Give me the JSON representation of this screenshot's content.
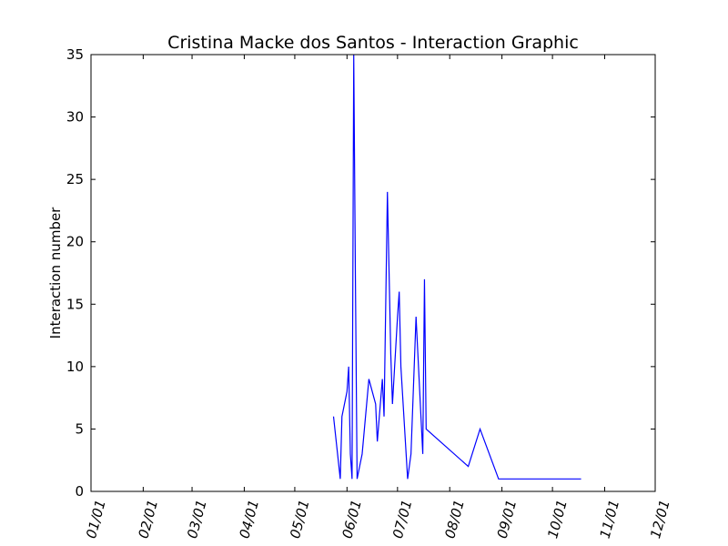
{
  "chart_data": {
    "type": "line",
    "title": "Cristina Macke dos Santos - Interaction Graphic",
    "xlabel": "",
    "ylabel": "Interaction number",
    "x_scale": "date",
    "xlim": [
      "01/01",
      "12/01"
    ],
    "ylim": [
      0,
      35
    ],
    "xticks": [
      "01/01",
      "02/01",
      "03/01",
      "04/01",
      "05/01",
      "06/01",
      "07/01",
      "08/01",
      "09/01",
      "10/01",
      "11/01",
      "12/01"
    ],
    "yticks": [
      0,
      5,
      10,
      15,
      20,
      25,
      30,
      35
    ],
    "grid": false,
    "series": [
      {
        "color": "#0000ff",
        "points": [
          {
            "x": "05/24",
            "y": 6
          },
          {
            "x": "05/28",
            "y": 1
          },
          {
            "x": "05/29",
            "y": 6
          },
          {
            "x": "06/01",
            "y": 8
          },
          {
            "x": "06/02",
            "y": 10
          },
          {
            "x": "06/03",
            "y": 3
          },
          {
            "x": "06/04",
            "y": 1
          },
          {
            "x": "06/05",
            "y": 35
          },
          {
            "x": "06/06",
            "y": 17
          },
          {
            "x": "06/07",
            "y": 1
          },
          {
            "x": "06/10",
            "y": 3
          },
          {
            "x": "06/14",
            "y": 9
          },
          {
            "x": "06/18",
            "y": 7
          },
          {
            "x": "06/19",
            "y": 4
          },
          {
            "x": "06/22",
            "y": 9
          },
          {
            "x": "06/23",
            "y": 6
          },
          {
            "x": "06/25",
            "y": 24
          },
          {
            "x": "06/27",
            "y": 11
          },
          {
            "x": "06/28",
            "y": 7
          },
          {
            "x": "07/01",
            "y": 14
          },
          {
            "x": "07/02",
            "y": 16
          },
          {
            "x": "07/03",
            "y": 10
          },
          {
            "x": "07/07",
            "y": 1
          },
          {
            "x": "07/09",
            "y": 3
          },
          {
            "x": "07/12",
            "y": 14
          },
          {
            "x": "07/16",
            "y": 3
          },
          {
            "x": "07/17",
            "y": 17
          },
          {
            "x": "07/18",
            "y": 5
          },
          {
            "x": "08/12",
            "y": 2
          },
          {
            "x": "08/19",
            "y": 5
          },
          {
            "x": "08/30",
            "y": 1
          },
          {
            "x": "10/18",
            "y": 1
          }
        ]
      }
    ]
  }
}
